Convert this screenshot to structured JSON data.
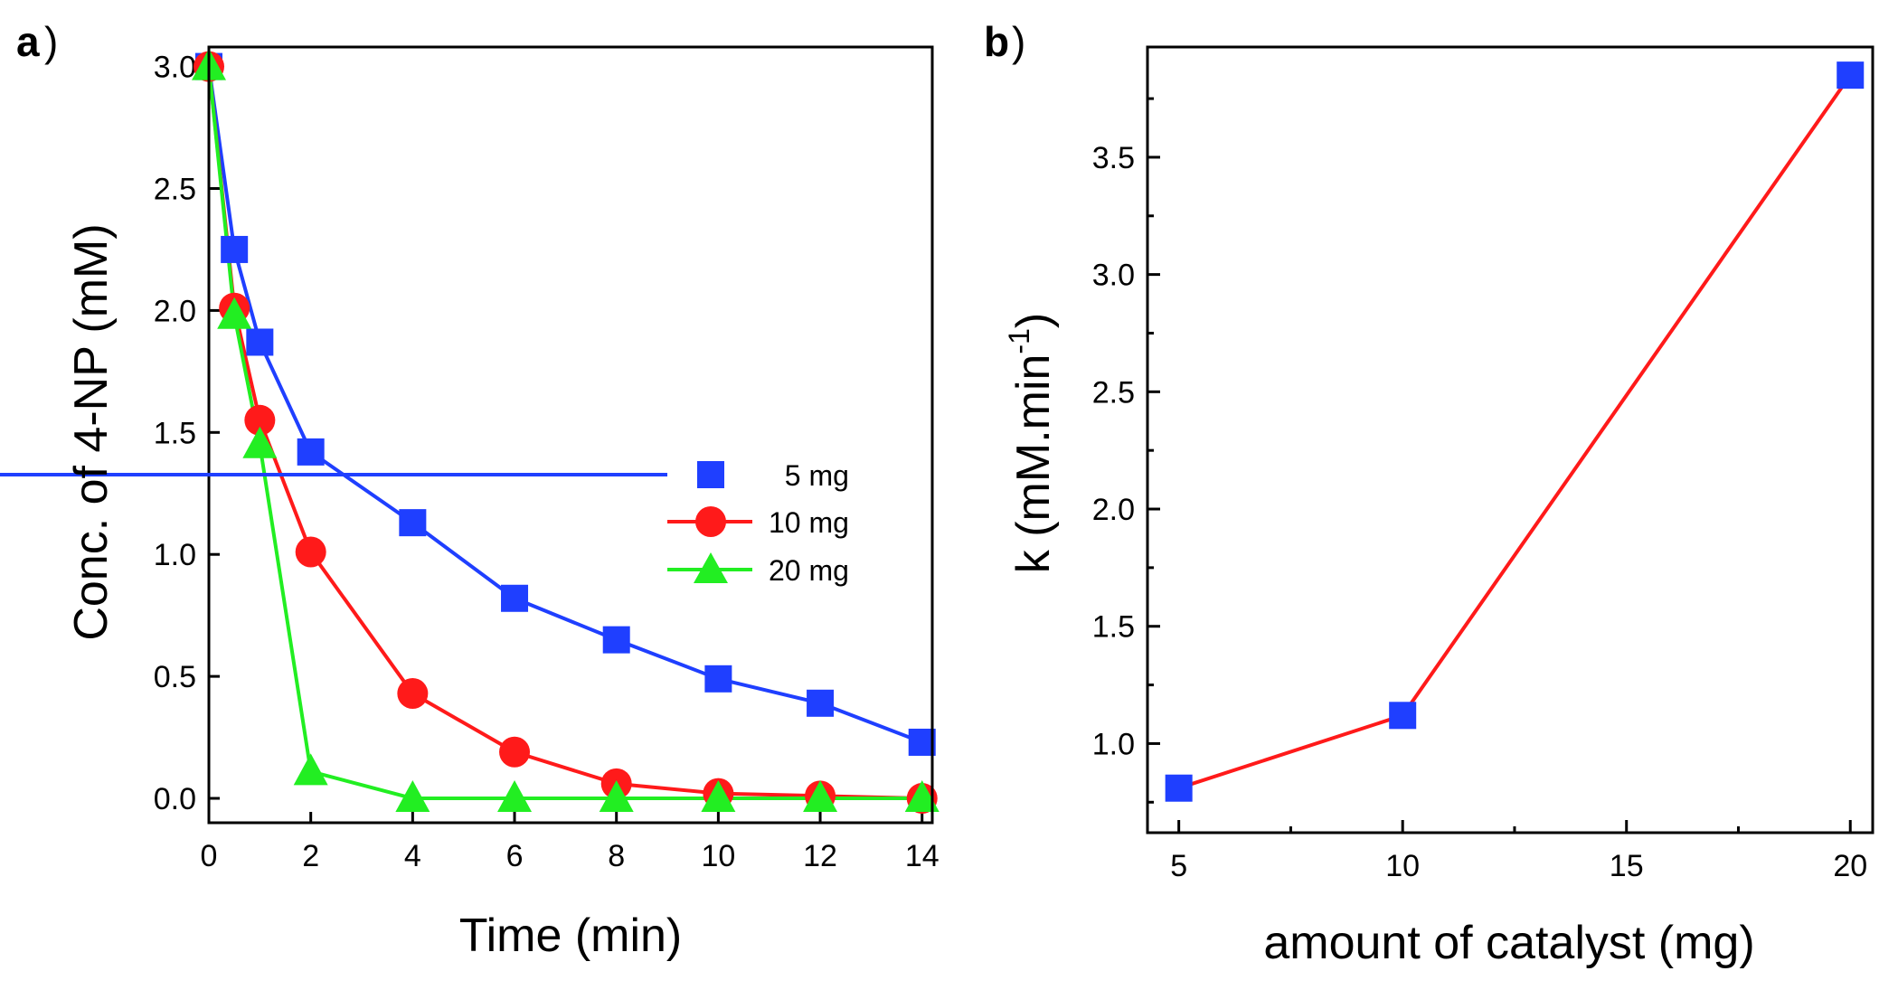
{
  "chart_data": [
    {
      "panel_label": "a",
      "type": "line",
      "title": "",
      "xlabel": "Time (min)",
      "ylabel": "Conc. of 4-NP (mM)",
      "xlim": [
        0,
        14.2
      ],
      "ylim": [
        -0.1,
        3.08
      ],
      "xticks": [
        0,
        2,
        4,
        6,
        8,
        10,
        12,
        14
      ],
      "xtick_labels": [
        "0",
        "2",
        "4",
        "6",
        "8",
        "10",
        "12",
        "14"
      ],
      "yticks": [
        0.0,
        0.5,
        1.0,
        1.5,
        2.0,
        2.5,
        3.0
      ],
      "ytick_labels": [
        "0.0",
        "0.5",
        "1.0",
        "1.5",
        "2.0",
        "2.5",
        "3.0"
      ],
      "legend_position": "center-right",
      "series": [
        {
          "name": "5 mg",
          "legend_label": "  5 mg",
          "color": "#1f3fff",
          "marker": "square",
          "x": [
            0,
            0.5,
            1,
            2,
            4,
            6,
            8,
            10,
            12,
            14
          ],
          "y": [
            3.0,
            2.25,
            1.87,
            1.42,
            1.13,
            0.82,
            0.65,
            0.49,
            0.39,
            0.23
          ]
        },
        {
          "name": "10 mg",
          "legend_label": "10 mg",
          "color": "#ff1a1a",
          "marker": "circle",
          "x": [
            0,
            0.5,
            1,
            2,
            4,
            6,
            8,
            10,
            12,
            14
          ],
          "y": [
            3.0,
            2.01,
            1.55,
            1.01,
            0.43,
            0.19,
            0.06,
            0.02,
            0.01,
            0.0
          ]
        },
        {
          "name": "20 mg",
          "legend_label": "20 mg",
          "color": "#22ee22",
          "marker": "triangle",
          "x": [
            0,
            0.5,
            1,
            2,
            4,
            6,
            8,
            10,
            12,
            14
          ],
          "y": [
            3.0,
            1.98,
            1.45,
            0.11,
            0.0,
            0.0,
            0.0,
            0.0,
            0.0,
            0.0
          ]
        }
      ]
    },
    {
      "panel_label": "b",
      "type": "line",
      "title": "",
      "xlabel": "amount of catalyst (mg)",
      "ylabel_main": "k (mM.min",
      "ylabel_sup": "-1",
      "ylabel_close": ")",
      "xlim": [
        4.3,
        20.5
      ],
      "ylim": [
        0.62,
        3.97
      ],
      "xticks": [
        5,
        10,
        15,
        20
      ],
      "xtick_labels": [
        "5",
        "10",
        "15",
        "20"
      ],
      "xminor": [
        7.5,
        12.5,
        17.5
      ],
      "yticks": [
        1.0,
        1.5,
        2.0,
        2.5,
        3.0,
        3.5
      ],
      "ytick_labels": [
        "1.0",
        "1.5",
        "2.0",
        "2.5",
        "3.0",
        "3.5"
      ],
      "yminor": [
        0.75,
        1.25,
        1.75,
        2.25,
        2.75,
        3.25,
        3.75
      ],
      "series": [
        {
          "name": "k",
          "line_color": "#ff1a1a",
          "marker_color": "#1f3fff",
          "marker": "square",
          "x": [
            5,
            10,
            20
          ],
          "y": [
            0.81,
            1.12,
            3.85
          ]
        }
      ]
    }
  ]
}
